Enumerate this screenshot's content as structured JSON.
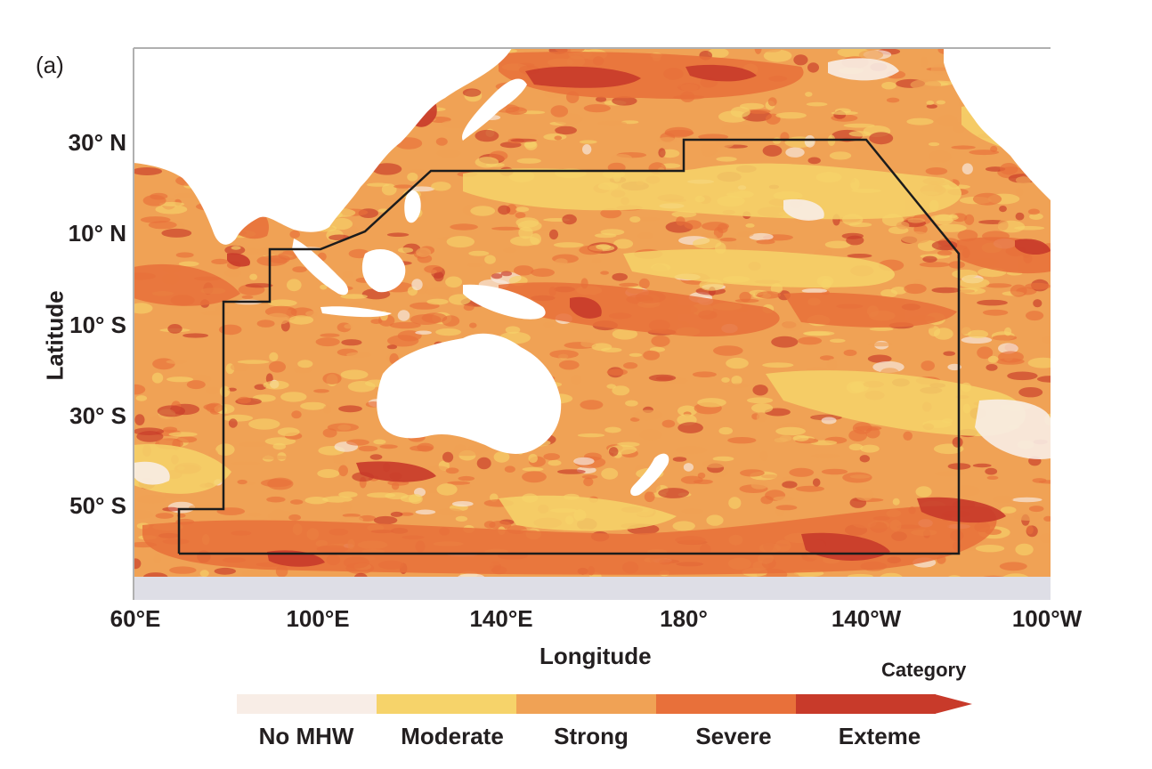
{
  "panel_label": "(a)",
  "axes": {
    "xlabel": "Longitude",
    "ylabel": "Latitude",
    "lat_ticks": [
      "30° N",
      "10° N",
      "10° S",
      "30° S",
      "50° S"
    ],
    "lon_ticks": [
      "60°E",
      "100°E",
      "140°E",
      "180°",
      "140°W",
      "100°W"
    ]
  },
  "legend": {
    "title": "Category",
    "categories": [
      {
        "label": "No MHW",
        "color": "#f8ede6"
      },
      {
        "label": "Moderate",
        "color": "#f6d36a"
      },
      {
        "label": "Strong",
        "color": "#f0a255"
      },
      {
        "label": "Severe",
        "color": "#e8703a"
      },
      {
        "label": "Exteme",
        "color": "#c83a2a"
      }
    ]
  },
  "colors": {
    "land": "#ffffff",
    "antarctic_ice": "#dedee6",
    "boundary_line": "#1c1c1c"
  }
}
